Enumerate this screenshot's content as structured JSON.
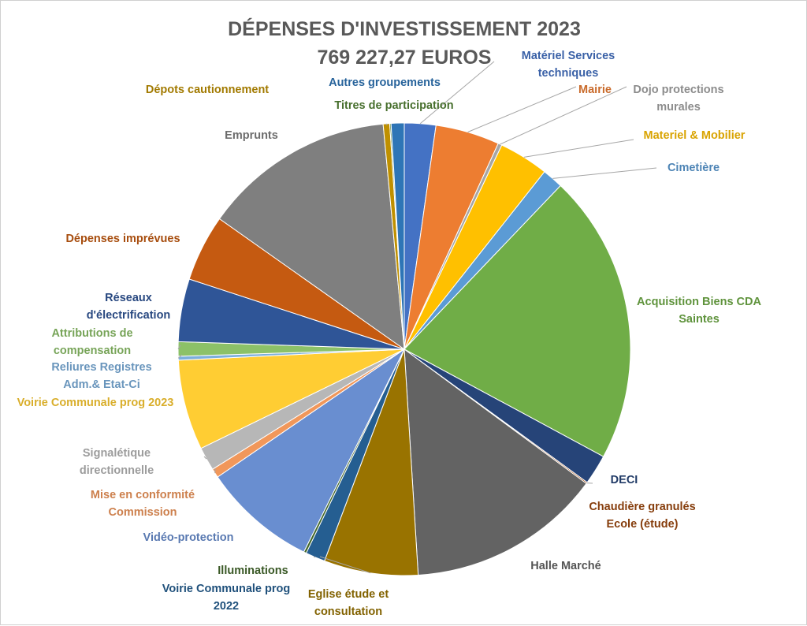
{
  "chart_data": {
    "type": "pie",
    "title": "DÉPENSES D'INVESTISSEMENT 2023",
    "subtitle": "769 227,27 EUROS",
    "slices": [
      {
        "label": "Matériel Services techniques",
        "value": 2.4,
        "color": "#4472C4"
      },
      {
        "label": "Mairie",
        "value": 4.9,
        "color": "#ED7D31"
      },
      {
        "label": "Dojo protections murales",
        "value": 0.3,
        "color": "#A5A5A5"
      },
      {
        "label": "Materiel & Mobilier",
        "value": 3.8,
        "color": "#FFC000"
      },
      {
        "label": "Cimetière",
        "value": 1.6,
        "color": "#5B9BD5"
      },
      {
        "label": "Acquisition Biens CDA Saintes",
        "value": 22.2,
        "color": "#70AD47"
      },
      {
        "label": "DECI",
        "value": 2.3,
        "color": "#264478"
      },
      {
        "label": "Chaudière granulés Ecole (étude)",
        "value": 0.1,
        "color": "#9E480E"
      },
      {
        "label": "Halle Marché",
        "value": 14.9,
        "color": "#636363"
      },
      {
        "label": "Eglise étude et consultation",
        "value": 7.2,
        "color": "#997300"
      },
      {
        "label": "Voirie Communale prog 2022",
        "value": 1.5,
        "color": "#255E91"
      },
      {
        "label": "Illuminations",
        "value": 0.2,
        "color": "#43682B"
      },
      {
        "label": "Vidéo-protection",
        "value": 8.7,
        "color": "#698ED0"
      },
      {
        "label": "Mise en conformité Commission",
        "value": 0.7,
        "color": "#F1975A"
      },
      {
        "label": "Signalétique directionnelle",
        "value": 1.8,
        "color": "#B7B7B7"
      },
      {
        "label": "Voirie Communale prog 2023",
        "value": 6.9,
        "color": "#FFCD33"
      },
      {
        "label": "Reliures Registres Adm.& Etat-Ci",
        "value": 0.3,
        "color": "#7CAFDD"
      },
      {
        "label": "Attributions de compensation",
        "value": 1.1,
        "color": "#8CC168"
      },
      {
        "label": "Réseaux d'électrification",
        "value": 4.8,
        "color": "#2F5597"
      },
      {
        "label": "Dépenses imprévues",
        "value": 5.1,
        "color": "#C55A11"
      },
      {
        "label": "Emprunts",
        "value": 14.7,
        "color": "#7F7F7F"
      },
      {
        "label": "Dépots cautionnement",
        "value": 0.5,
        "color": "#BF9000"
      },
      {
        "label": "Titres de participation",
        "value": 0.1,
        "color": "#548235"
      },
      {
        "label": "Autres groupements",
        "value": 1.0,
        "color": "#2E75B6"
      }
    ]
  }
}
